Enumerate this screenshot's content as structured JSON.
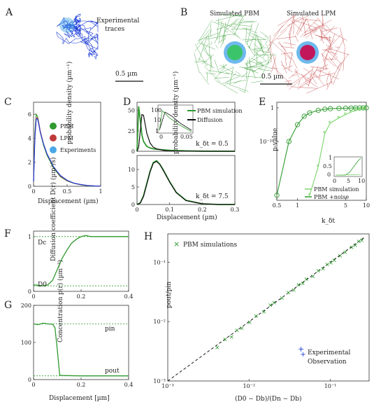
{
  "panels": {
    "A": {
      "letter": "A",
      "caption_1": "Experimental",
      "caption_2": "traces",
      "scalebar": "0.5 µm"
    },
    "B": {
      "letter": "B",
      "left_title": "Simulated PBM",
      "right_title": "Simulated LPM",
      "scalebar": "0.5 µm"
    },
    "C": {
      "letter": "C",
      "ylabel": "probability density (µm⁻¹)",
      "xlabel": "Displacement (µm)",
      "xticks": [
        "0",
        "0.5",
        "1"
      ],
      "yticks": [
        "0",
        "2",
        "4",
        "6"
      ],
      "legend": [
        "PBM",
        "LPM",
        "Experiments"
      ]
    },
    "D": {
      "letter": "D",
      "ylabel": "probability density (µm⁻¹)",
      "xlabel": "Displacement (µm)",
      "xticks": [
        "0",
        "0.1",
        "0.2",
        "0.3"
      ],
      "yticks_top": [
        "0",
        "25",
        "50"
      ],
      "yticks_bottom": [
        "0",
        "5",
        "10"
      ],
      "legend": [
        "PBM simulation",
        "Diffusion"
      ],
      "ann_top": "k_δt = 0.5",
      "ann_bottom": "k_δt = 7.5",
      "inset_yticks": [
        "10",
        "1",
        "100"
      ],
      "inset_xticks": [
        "0",
        "0.05"
      ]
    },
    "E": {
      "letter": "E",
      "ylabel": "p-value",
      "xlabel": "k_δt",
      "xticks": [
        "0.5",
        "1",
        "5",
        "10"
      ],
      "yticks": [
        "1",
        "10⁻²⁰"
      ],
      "inset_yticks": [
        "0",
        "0.5",
        "1"
      ],
      "inset_xticks": [
        "0",
        "5",
        "10"
      ],
      "legend": [
        "PBM simulation",
        "PBM +noise"
      ]
    },
    "F": {
      "letter": "F",
      "ylabel": "Diffusion coefficient D(r) (µm²/s)",
      "ytick1": "1",
      "ytick0": "0",
      "xticks": [
        "0",
        "0.2",
        "0.4"
      ],
      "Dc": "Dc",
      "D0": "D0"
    },
    "G": {
      "letter": "G",
      "ylabel": "Concentration p(r) (µm⁻³)",
      "xlabel": "Displacement [µm]",
      "xticks": [
        "0",
        "0.2",
        "0.4"
      ],
      "yticks": [
        "0",
        "100",
        "200"
      ],
      "pin": "pin",
      "pout": "pout"
    },
    "H": {
      "letter": "H",
      "ylabel": "pout/pin",
      "xlabel": "(D0 − Db)/(Dn − Db)",
      "xticks": [
        "10⁻³",
        "10⁻²",
        "10⁻¹"
      ],
      "yticks": [
        "10⁻³",
        "10⁻²",
        "10⁻¹"
      ],
      "legend_sim": "PBM simulations",
      "legend_exp_1": "Experimental",
      "legend_exp_2": "Observation"
    }
  },
  "colors": {
    "blue": "#1f3fd8",
    "green": "#2f9a2f",
    "lightgreen": "#7ad46a",
    "red": "#c0393b",
    "lightblue": "#4aa8e8",
    "black": "#111111"
  },
  "chart_data": [
    {
      "type": "line",
      "panel": "C",
      "xlim": [
        0,
        1
      ],
      "ylim": [
        0,
        7
      ],
      "x": [
        0,
        0.02,
        0.04,
        0.06,
        0.08,
        0.1,
        0.15,
        0.2,
        0.3,
        0.4,
        0.5,
        0.6,
        0.7,
        0.8,
        0.9,
        1.0
      ],
      "series": [
        {
          "name": "PBM",
          "values": [
            0.5,
            4.5,
            6.0,
            5.8,
            5.2,
            4.5,
            3.4,
            2.6,
            1.5,
            0.8,
            0.45,
            0.25,
            0.13,
            0.06,
            0.03,
            0.01
          ]
        },
        {
          "name": "LPM",
          "values": [
            0.4,
            4.2,
            5.7,
            5.7,
            5.2,
            4.6,
            3.5,
            2.7,
            1.6,
            0.85,
            0.48,
            0.26,
            0.14,
            0.07,
            0.03,
            0.01
          ]
        },
        {
          "name": "Experiments",
          "values": [
            0.4,
            4.0,
            5.6,
            5.6,
            5.1,
            4.5,
            3.5,
            2.7,
            1.6,
            0.9,
            0.5,
            0.27,
            0.15,
            0.07,
            0.03,
            0.01
          ]
        }
      ]
    },
    {
      "type": "line",
      "panel": "D-top",
      "xlim": [
        0,
        0.3
      ],
      "ylim": [
        0,
        60
      ],
      "x": [
        0,
        0.005,
        0.01,
        0.015,
        0.02,
        0.03,
        0.04,
        0.05,
        0.06,
        0.08,
        0.1,
        0.15,
        0.2,
        0.3
      ],
      "series": [
        {
          "name": "PBM simulation",
          "values": [
            0,
            55,
            38,
            20,
            12,
            6,
            4,
            3,
            2.5,
            1.8,
            1.2,
            0.5,
            0.2,
            0
          ]
        },
        {
          "name": "Diffusion",
          "values": [
            0,
            5,
            25,
            45,
            44,
            22,
            10,
            5,
            3,
            1.2,
            0.5,
            0.1,
            0,
            0
          ]
        }
      ]
    },
    {
      "type": "line",
      "panel": "D-bottom",
      "xlim": [
        0,
        0.3
      ],
      "ylim": [
        0,
        14
      ],
      "x": [
        0,
        0.01,
        0.02,
        0.03,
        0.04,
        0.05,
        0.06,
        0.07,
        0.08,
        0.1,
        0.12,
        0.15,
        0.2,
        0.25,
        0.3
      ],
      "series": [
        {
          "name": "PBM simulation",
          "values": [
            0,
            0.5,
            2.5,
            6,
            9.5,
            12,
            12.5,
            11.5,
            10,
            6.5,
            3.5,
            1.2,
            0.2,
            0,
            0
          ]
        },
        {
          "name": "Diffusion",
          "values": [
            0,
            0.4,
            2.3,
            5.8,
            9.3,
            11.8,
            12.3,
            11.4,
            9.8,
            6.4,
            3.4,
            1.1,
            0.2,
            0,
            0
          ]
        }
      ]
    },
    {
      "type": "line",
      "panel": "E",
      "xlim": [
        0.5,
        10
      ],
      "log_x": true,
      "series": [
        {
          "name": "PBM simulation",
          "x": [
            0.5,
            0.75,
            1,
            1.25,
            1.5,
            2,
            2.5,
            3,
            4,
            5,
            6,
            7,
            8,
            9,
            10
          ],
          "values": [
            -52,
            -20,
            -10,
            -5,
            -3,
            -1.5,
            -0.8,
            -0.5,
            -0.3,
            -0.2,
            -0.1,
            -0.05,
            -0.02,
            -0.01,
            0
          ]
        },
        {
          "name": "PBM +noise",
          "x": [
            1.5,
            2,
            2.5,
            3,
            4,
            5,
            6,
            7,
            8,
            9,
            10
          ],
          "values": [
            -52,
            -35,
            -15,
            -9,
            -6,
            -4,
            -2.5,
            -1.6,
            -1,
            -0.6,
            -0.3
          ]
        }
      ]
    },
    {
      "type": "line",
      "panel": "F",
      "xlim": [
        0,
        0.4
      ],
      "ylim": [
        0,
        1.1
      ],
      "x": [
        0,
        0.04,
        0.06,
        0.08,
        0.1,
        0.12,
        0.14,
        0.16,
        0.18,
        0.2,
        0.22,
        0.24,
        0.3,
        0.4
      ],
      "series": [
        {
          "name": "",
          "values": [
            0.12,
            0.1,
            0.12,
            0.2,
            0.4,
            0.6,
            0.75,
            0.88,
            0.95,
            1.0,
            1.02,
            1.0,
            1.0,
            1.0
          ]
        }
      ]
    },
    {
      "type": "line",
      "panel": "G",
      "xlim": [
        0,
        0.4
      ],
      "ylim": [
        0,
        200
      ],
      "x": [
        0,
        0.02,
        0.04,
        0.06,
        0.08,
        0.09,
        0.1,
        0.11,
        0.12,
        0.2,
        0.3,
        0.4
      ],
      "series": [
        {
          "name": "",
          "values": [
            150,
            148,
            152,
            150,
            149,
            140,
            80,
            12,
            11,
            10,
            10,
            10
          ]
        }
      ]
    },
    {
      "type": "scatter",
      "panel": "H",
      "log_x": true,
      "log_y": true,
      "xlim": [
        0.001,
        0.3
      ],
      "ylim": [
        0.001,
        0.3
      ],
      "series": [
        {
          "name": "PBM simulations",
          "x": [
            0.004,
            0.005,
            0.006,
            0.007,
            0.008,
            0.01,
            0.012,
            0.015,
            0.018,
            0.02,
            0.025,
            0.03,
            0.035,
            0.04,
            0.045,
            0.05,
            0.06,
            0.07,
            0.08,
            0.09,
            0.1,
            0.11,
            0.13,
            0.15,
            0.18,
            0.2,
            0.22,
            0.24
          ],
          "values": [
            0.0037,
            0.005,
            0.0055,
            0.0072,
            0.0078,
            0.0098,
            0.0125,
            0.0148,
            0.019,
            0.021,
            0.025,
            0.031,
            0.034,
            0.042,
            0.044,
            0.052,
            0.058,
            0.072,
            0.078,
            0.092,
            0.098,
            0.108,
            0.13,
            0.148,
            0.18,
            0.195,
            0.225,
            0.235
          ]
        },
        {
          "name": "Experimental Observation",
          "x": [
            0.045
          ],
          "values": [
            0.0028
          ]
        }
      ]
    }
  ]
}
